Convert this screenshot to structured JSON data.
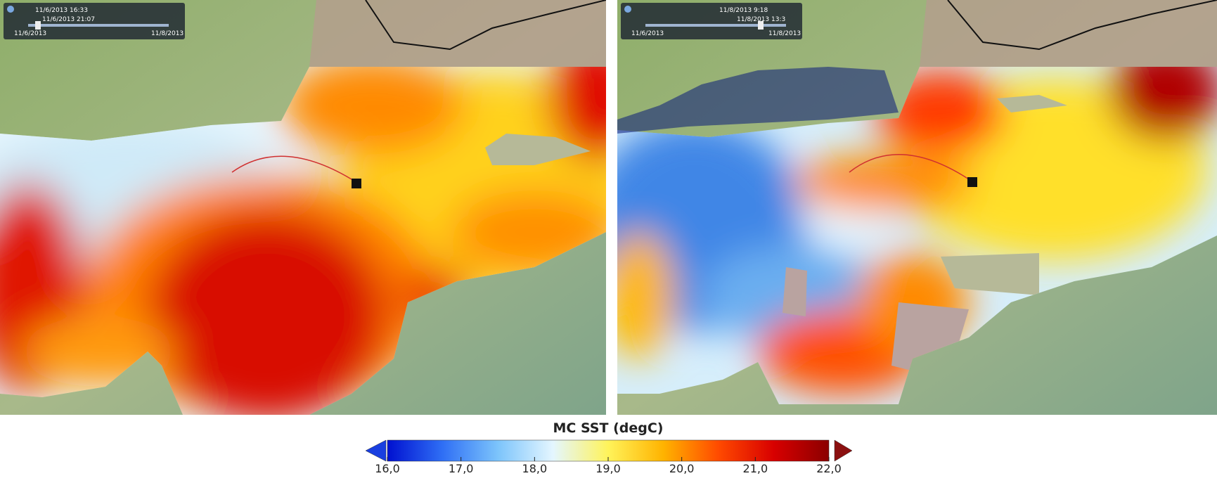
{
  "panels": [
    {
      "time_control": {
        "current": "11/6/2013 16:33",
        "end_time": "11/6/2013 21:07",
        "range_start": "11/6/2013",
        "range_end": "11/8/2013"
      }
    },
    {
      "time_control": {
        "current": "11/8/2013 9:18",
        "end_time": "11/8/2013 13:3",
        "range_start": "11/6/2013",
        "range_end": "11/8/2013"
      }
    }
  ],
  "colorbar": {
    "title": "MC SST (degC)",
    "lim": [
      16,
      22
    ],
    "ticks": [
      {
        "value": 16,
        "label": "16,0"
      },
      {
        "value": 17,
        "label": "17,0"
      },
      {
        "value": 18,
        "label": "18,0"
      },
      {
        "value": 19,
        "label": "19,0"
      },
      {
        "value": 20,
        "label": "20,0"
      },
      {
        "value": 21,
        "label": "21,0"
      },
      {
        "value": 22,
        "label": "22,0"
      }
    ],
    "colors": [
      "#0010d0",
      "#2f6ff5",
      "#7cc4fb",
      "#e4f6ff",
      "#fff35a",
      "#ffb300",
      "#ff4a00",
      "#d80000",
      "#8b0000"
    ]
  }
}
